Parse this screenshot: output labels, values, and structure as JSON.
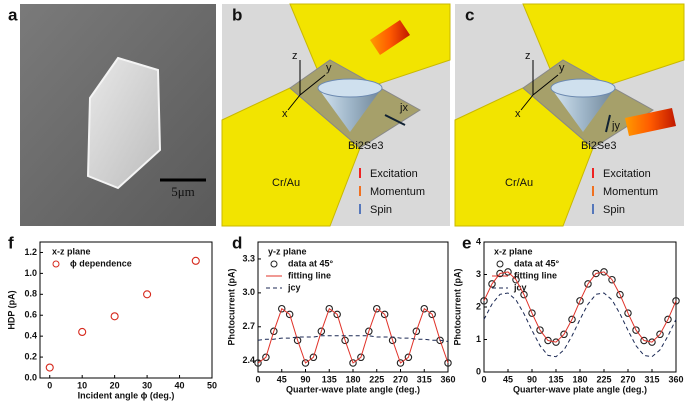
{
  "panels": {
    "a": {
      "label": "a",
      "scale": "5μm"
    },
    "b": {
      "label": "b",
      "x": "x",
      "y": "y",
      "z": "z",
      "current": "jx",
      "material": "Bi2Se3",
      "electrode": "Cr/Au",
      "legend": [
        "Excitation",
        "Momentum",
        "Spin"
      ]
    },
    "c": {
      "label": "c",
      "x": "x",
      "y": "y",
      "z": "z",
      "current": "jy",
      "material": "Bi2Se3",
      "electrode": "Cr/Au",
      "legend": [
        "Excitation",
        "Momentum",
        "Spin"
      ]
    }
  },
  "chart_data": [
    {
      "type": "scatter",
      "panel_label": "f",
      "title": "x-z plane",
      "xlabel": "Incident angle ϕ (deg.)",
      "ylabel": "HDP (pA)",
      "series": [
        {
          "name": "ϕ dependence",
          "color": "#d62a1e",
          "mode": "markers",
          "x": [
            0,
            10,
            20,
            30,
            45
          ],
          "values": [
            0.1,
            0.44,
            0.59,
            0.8,
            1.12
          ]
        }
      ],
      "xlim": [
        -3,
        50
      ],
      "xticks": [
        0,
        10,
        20,
        30,
        40,
        50
      ],
      "ylim": [
        0,
        1.3
      ],
      "yticks": [
        {
          "value": 0,
          "label": "0.0"
        },
        0.2,
        0.4,
        0.6,
        0.8,
        {
          "value": 1,
          "label": "1.0"
        },
        1.2
      ]
    },
    {
      "type": "line",
      "panel_label": "d",
      "title": "y-z plane",
      "xlabel": "Quarter-wave plate angle (deg.)",
      "ylabel": "Photocurrent (pA)",
      "series": [
        {
          "name": "data at 45°",
          "color": "#222222",
          "mode": "markers",
          "x": [
            0,
            15,
            30,
            45,
            60,
            75,
            90,
            105,
            120,
            135,
            150,
            165,
            180,
            195,
            210,
            225,
            240,
            255,
            270,
            285,
            300,
            315,
            330,
            345,
            360
          ],
          "values": [
            2.38,
            2.43,
            2.66,
            2.86,
            2.81,
            2.58,
            2.38,
            2.43,
            2.66,
            2.86,
            2.81,
            2.58,
            2.38,
            2.43,
            2.66,
            2.86,
            2.81,
            2.58,
            2.38,
            2.43,
            2.66,
            2.86,
            2.81,
            2.58,
            2.38
          ]
        },
        {
          "name": "fitting line",
          "color": "#e0332a",
          "mode": "line",
          "x": [
            0,
            15,
            30,
            45,
            60,
            75,
            90,
            105,
            120,
            135,
            150,
            165,
            180,
            195,
            210,
            225,
            240,
            255,
            270,
            285,
            300,
            315,
            330,
            345,
            360
          ],
          "values": [
            2.38,
            2.43,
            2.66,
            2.86,
            2.81,
            2.58,
            2.38,
            2.43,
            2.66,
            2.86,
            2.81,
            2.58,
            2.38,
            2.43,
            2.66,
            2.86,
            2.81,
            2.58,
            2.38,
            2.43,
            2.66,
            2.86,
            2.81,
            2.58,
            2.38
          ]
        },
        {
          "name": "jcy",
          "color": "#1c2a55",
          "mode": "dash",
          "x": [
            0,
            15,
            30,
            45,
            60,
            75,
            90,
            105,
            120,
            135,
            150,
            165,
            180,
            195,
            210,
            225,
            240,
            255,
            270,
            285,
            300,
            315,
            330,
            345,
            360
          ],
          "values": [
            2.58,
            2.59,
            2.59,
            2.6,
            2.6,
            2.61,
            2.61,
            2.61,
            2.62,
            2.62,
            2.62,
            2.62,
            2.62,
            2.62,
            2.62,
            2.61,
            2.61,
            2.61,
            2.6,
            2.6,
            2.59,
            2.59,
            2.58,
            2.58,
            2.57
          ]
        }
      ],
      "xlim": [
        0,
        360
      ],
      "xticks": [
        0,
        45,
        90,
        135,
        180,
        225,
        270,
        315,
        360
      ],
      "ylim": [
        2.3,
        3.45
      ],
      "yticks": [
        2.4,
        2.7,
        {
          "value": 3,
          "label": "3.0"
        },
        3.3
      ]
    },
    {
      "type": "line",
      "panel_label": "e",
      "title": "x-z plane",
      "xlabel": "Quarter-wave plate angle (deg.)",
      "ylabel": "Photocurrent (pA)",
      "series": [
        {
          "name": "data at 45°",
          "color": "#222222",
          "mode": "markers",
          "x": [
            0,
            15,
            30,
            45,
            60,
            75,
            90,
            105,
            120,
            135,
            150,
            165,
            180,
            195,
            210,
            225,
            240,
            255,
            270,
            285,
            300,
            315,
            330,
            345,
            360
          ],
          "values": [
            2.19,
            2.71,
            3.03,
            3.08,
            2.84,
            2.38,
            1.81,
            1.29,
            0.97,
            0.92,
            1.16,
            1.62,
            2.19,
            2.71,
            3.03,
            3.08,
            2.84,
            2.38,
            1.81,
            1.29,
            0.97,
            0.92,
            1.16,
            1.62,
            2.19
          ]
        },
        {
          "name": "fitting line",
          "color": "#e0332a",
          "mode": "line",
          "x": [
            0,
            15,
            30,
            45,
            60,
            75,
            90,
            105,
            120,
            135,
            150,
            165,
            180,
            195,
            210,
            225,
            240,
            255,
            270,
            285,
            300,
            315,
            330,
            345,
            360
          ],
          "values": [
            2.19,
            2.71,
            3.03,
            3.08,
            2.84,
            2.38,
            1.81,
            1.29,
            0.97,
            0.92,
            1.16,
            1.62,
            2.19,
            2.71,
            3.03,
            3.08,
            2.84,
            2.38,
            1.81,
            1.29,
            0.97,
            0.92,
            1.16,
            1.62,
            2.19
          ]
        },
        {
          "name": "jcy",
          "color": "#1c2a55",
          "mode": "dash",
          "x": [
            0,
            15,
            30,
            45,
            60,
            75,
            90,
            105,
            120,
            135,
            150,
            165,
            180,
            195,
            210,
            225,
            240,
            255,
            270,
            285,
            300,
            315,
            330,
            345,
            360
          ],
          "values": [
            1.62,
            2.09,
            2.39,
            2.43,
            2.22,
            1.79,
            1.28,
            0.81,
            0.51,
            0.47,
            0.68,
            1.11,
            1.62,
            2.09,
            2.39,
            2.43,
            2.22,
            1.79,
            1.28,
            0.81,
            0.51,
            0.47,
            0.68,
            1.11,
            1.62
          ]
        }
      ],
      "xlim": [
        0,
        360
      ],
      "xticks": [
        0,
        45,
        90,
        135,
        180,
        225,
        270,
        315,
        360
      ],
      "ylim": [
        0,
        4
      ],
      "yticks": [
        0,
        1,
        2,
        3,
        4
      ]
    }
  ]
}
